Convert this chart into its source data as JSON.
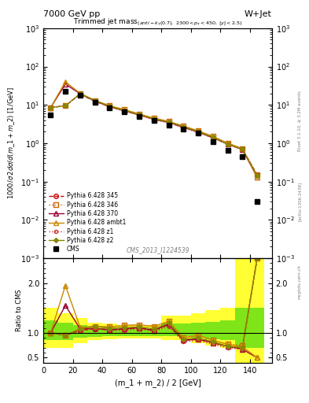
{
  "title_main": "7000 GeV pp",
  "title_right": "W+Jet",
  "plot_title": "Trimmed jet mass",
  "plot_subtitle": "(anti-k_{T}(0.7), 2300<p_{T}<450, |y|<2.5)",
  "xlabel": "(m_1 + m_2) / 2 [GeV]",
  "ylabel_main": "1000/σ 2dσ/d(m_1 + m_2) [1/GeV]",
  "ylabel_ratio": "Ratio to CMS",
  "watermark": "CMS_2013_I1224539",
  "rivet_label": "Rivet 3.1.10, ≥ 3.2M events",
  "arxiv_label": "[arXiv:1306.3438]",
  "mcplots_label": "mcplots.cern.ch",
  "x_data": [
    5,
    15,
    25,
    35,
    45,
    55,
    65,
    75,
    85,
    95,
    105,
    115,
    125,
    135,
    145
  ],
  "cms_data": [
    5.5,
    23.0,
    18.0,
    11.5,
    8.5,
    6.5,
    5.0,
    4.0,
    3.0,
    2.3,
    1.8,
    1.1,
    0.65,
    0.45,
    0.03
  ],
  "py345_data": [
    8.5,
    9.5,
    19.0,
    12.5,
    9.0,
    7.0,
    5.5,
    4.2,
    3.5,
    2.6,
    2.0,
    1.4,
    0.95,
    0.7,
    0.15
  ],
  "py346_data": [
    8.5,
    9.5,
    19.5,
    13.0,
    9.5,
    7.5,
    5.8,
    4.5,
    3.7,
    2.8,
    2.1,
    1.5,
    1.0,
    0.72,
    0.15
  ],
  "py370_data": [
    8.5,
    35.0,
    19.5,
    12.5,
    9.0,
    7.0,
    5.5,
    4.2,
    3.5,
    2.6,
    1.95,
    1.4,
    0.95,
    0.68,
    0.13
  ],
  "py_ambt1_data": [
    8.5,
    40.0,
    20.0,
    13.0,
    9.5,
    7.5,
    5.8,
    4.5,
    3.7,
    2.8,
    2.1,
    1.5,
    1.0,
    0.72,
    0.13
  ],
  "py_z1_data": [
    8.5,
    9.5,
    19.0,
    12.5,
    8.8,
    6.8,
    5.4,
    4.1,
    3.4,
    2.5,
    1.9,
    1.35,
    0.93,
    0.68,
    0.14
  ],
  "py_z2_data": [
    8.5,
    9.5,
    19.5,
    13.0,
    9.2,
    7.2,
    5.6,
    4.3,
    3.6,
    2.7,
    2.0,
    1.45,
    0.95,
    0.7,
    0.14
  ],
  "ratio_345": [
    1.0,
    0.95,
    1.05,
    1.08,
    1.06,
    1.08,
    1.1,
    1.05,
    1.17,
    0.85,
    0.88,
    0.8,
    0.73,
    0.7,
    2.5
  ],
  "ratio_346": [
    1.0,
    0.95,
    1.08,
    1.13,
    1.12,
    1.15,
    1.16,
    1.13,
    1.23,
    0.91,
    0.95,
    0.85,
    0.77,
    0.75,
    2.5
  ],
  "ratio_370": [
    1.0,
    1.55,
    1.08,
    1.09,
    1.06,
    1.08,
    1.1,
    1.05,
    1.17,
    0.85,
    0.87,
    0.8,
    0.73,
    0.67,
    0.5
  ],
  "ratio_ambt1": [
    1.0,
    1.95,
    1.11,
    1.13,
    1.12,
    1.15,
    1.16,
    1.13,
    1.23,
    0.9,
    0.95,
    0.85,
    0.77,
    0.72,
    0.5
  ],
  "ratio_z1": [
    1.0,
    0.95,
    1.05,
    1.09,
    1.04,
    1.05,
    1.08,
    1.03,
    1.13,
    0.82,
    0.85,
    0.77,
    0.7,
    0.67,
    2.5
  ],
  "ratio_z2": [
    1.0,
    0.95,
    1.08,
    1.13,
    1.09,
    1.11,
    1.12,
    1.08,
    1.2,
    0.87,
    0.9,
    0.82,
    0.73,
    0.7,
    2.5
  ],
  "band_yellow_lo": [
    0.7,
    0.7,
    0.8,
    0.85,
    0.87,
    0.88,
    0.89,
    0.89,
    0.85,
    0.85,
    0.8,
    0.75,
    0.7,
    0.4,
    0.4
  ],
  "band_yellow_hi": [
    1.5,
    1.4,
    1.3,
    1.2,
    1.18,
    1.16,
    1.15,
    1.15,
    1.35,
    1.35,
    1.4,
    1.45,
    1.5,
    2.5,
    2.5
  ],
  "band_green_lo": [
    0.85,
    0.85,
    0.9,
    0.92,
    0.93,
    0.93,
    0.94,
    0.94,
    0.93,
    0.93,
    0.9,
    0.87,
    0.85,
    0.7,
    0.7
  ],
  "band_green_hi": [
    1.25,
    1.2,
    1.15,
    1.1,
    1.09,
    1.08,
    1.07,
    1.07,
    1.18,
    1.18,
    1.2,
    1.22,
    1.25,
    1.5,
    1.5
  ],
  "color_345": "#cc0000",
  "color_346": "#cc6600",
  "color_370": "#990033",
  "color_ambt1": "#cc8800",
  "color_z1": "#cc3333",
  "color_z2": "#888800",
  "ylim_main": [
    0.001,
    1000.0
  ],
  "ylim_ratio": [
    0.4,
    2.5
  ],
  "xlim": [
    0,
    155
  ]
}
